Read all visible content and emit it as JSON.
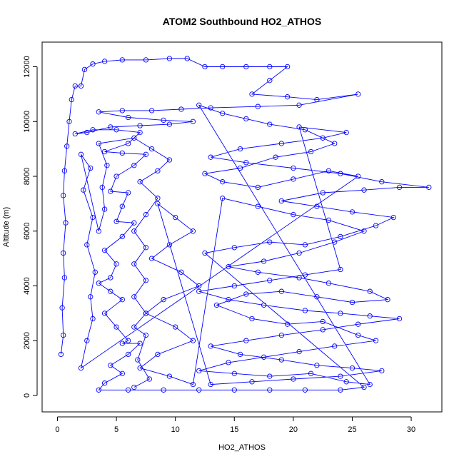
{
  "chart_data": {
    "type": "scatter",
    "title": "ATOM2 Southbound HO2_ATHOS",
    "xlabel": "HO2_ATHOS",
    "ylabel": "Altitude (m)",
    "xlim": [
      -1.3,
      32.6
    ],
    "ylim": [
      -600,
      12900
    ],
    "x_ticks": [
      0,
      5,
      10,
      15,
      20,
      25,
      30
    ],
    "y_ticks": [
      0,
      2000,
      4000,
      6000,
      8000,
      10000,
      12000
    ],
    "grid": false,
    "legend": "none",
    "series_color": "#0000ff",
    "marker": "open-circle",
    "connect_points": true,
    "series": [
      {
        "points": [
          [
            0.3,
            1500
          ],
          [
            0.5,
            2200
          ],
          [
            0.4,
            3200
          ],
          [
            0.6,
            4300
          ],
          [
            0.5,
            5200
          ],
          [
            0.7,
            6300
          ],
          [
            0.5,
            7300
          ],
          [
            0.6,
            8200
          ],
          [
            0.8,
            9100
          ],
          [
            1.0,
            10000
          ],
          [
            1.2,
            10800
          ],
          [
            1.5,
            11300
          ],
          [
            2.0,
            11300
          ],
          [
            2.3,
            11900
          ],
          [
            3.0,
            12100
          ],
          [
            4.0,
            12200
          ],
          [
            5.5,
            12250
          ],
          [
            7.5,
            12250
          ],
          [
            9.5,
            12300
          ],
          [
            11.0,
            12300
          ],
          [
            12.5,
            12000
          ],
          [
            14.0,
            12000
          ],
          [
            16.0,
            12000
          ],
          [
            18.0,
            12000
          ],
          [
            19.5,
            12000
          ],
          [
            18.0,
            11500
          ],
          [
            16.5,
            11000
          ],
          [
            19.5,
            10900
          ],
          [
            22.0,
            10800
          ],
          [
            25.5,
            11000
          ],
          [
            20.5,
            10600
          ],
          [
            17.0,
            10550
          ],
          [
            13.0,
            10500
          ],
          [
            10.5,
            10450
          ],
          [
            8.0,
            10400
          ],
          [
            5.5,
            10400
          ],
          [
            3.5,
            10350
          ],
          [
            6.0,
            10150
          ],
          [
            9.0,
            10050
          ],
          [
            11.5,
            10000
          ],
          [
            9.5,
            9900
          ],
          [
            7.0,
            9850
          ],
          [
            4.5,
            9800
          ],
          [
            2.5,
            9600
          ],
          [
            1.5,
            9550
          ],
          [
            3.0,
            9700
          ],
          [
            5.0,
            9700
          ],
          [
            7.0,
            9600
          ],
          [
            6.0,
            9200
          ],
          [
            4.0,
            8900
          ],
          [
            5.5,
            8850
          ],
          [
            7.5,
            8800
          ],
          [
            6.5,
            8400
          ],
          [
            5.0,
            8000
          ],
          [
            4.5,
            7450
          ],
          [
            6.0,
            7400
          ],
          [
            5.5,
            6900
          ],
          [
            5.0,
            6350
          ],
          [
            6.5,
            6300
          ],
          [
            5.5,
            5800
          ],
          [
            4.0,
            5300
          ],
          [
            5.0,
            4800
          ],
          [
            4.5,
            4300
          ],
          [
            3.5,
            4100
          ],
          [
            4.5,
            3800
          ],
          [
            5.5,
            3500
          ],
          [
            4.0,
            3000
          ],
          [
            5.0,
            2500
          ],
          [
            6.0,
            2000
          ],
          [
            5.5,
            1900
          ],
          [
            7.0,
            1900
          ],
          [
            6.0,
            1500
          ],
          [
            4.5,
            1100
          ],
          [
            5.5,
            800
          ],
          [
            4.0,
            450
          ],
          [
            3.5,
            200
          ],
          [
            6.0,
            200
          ],
          [
            9.0,
            200
          ],
          [
            12.0,
            200
          ],
          [
            15.0,
            200
          ],
          [
            18.0,
            200
          ],
          [
            21.0,
            200
          ],
          [
            24.0,
            200
          ],
          [
            26.0,
            300
          ],
          [
            12.5,
            5200
          ],
          [
            15.0,
            5400
          ],
          [
            18.0,
            5600
          ],
          [
            21.0,
            5500
          ],
          [
            24.0,
            5800
          ],
          [
            27.0,
            6200
          ],
          [
            28.5,
            6500
          ],
          [
            25.0,
            6700
          ],
          [
            22.0,
            6900
          ],
          [
            19.0,
            7100
          ],
          [
            22.5,
            7400
          ],
          [
            26.0,
            7500
          ],
          [
            29.0,
            7600
          ],
          [
            31.5,
            7600
          ],
          [
            27.5,
            7800
          ],
          [
            24.0,
            8100
          ],
          [
            20.0,
            8300
          ],
          [
            16.0,
            8500
          ],
          [
            13.0,
            8700
          ],
          [
            15.5,
            9000
          ],
          [
            19.0,
            9200
          ],
          [
            22.5,
            9400
          ],
          [
            24.5,
            9600
          ],
          [
            20.5,
            9800
          ],
          [
            24.0,
            4600
          ],
          [
            21.0,
            4400
          ],
          [
            18.0,
            4200
          ],
          [
            15.0,
            4000
          ],
          [
            12.0,
            3800
          ],
          [
            14.5,
            3500
          ],
          [
            17.5,
            3300
          ],
          [
            21.0,
            3100
          ],
          [
            24.0,
            3000
          ],
          [
            26.5,
            2900
          ],
          [
            29.0,
            2800
          ],
          [
            25.5,
            2600
          ],
          [
            22.5,
            2400
          ],
          [
            19.0,
            2200
          ],
          [
            16.0,
            2000
          ],
          [
            13.0,
            1800
          ],
          [
            15.5,
            1500
          ],
          [
            19.0,
            1300
          ],
          [
            22.0,
            1100
          ],
          [
            25.0,
            1000
          ],
          [
            27.5,
            900
          ],
          [
            24.0,
            700
          ],
          [
            20.0,
            600
          ],
          [
            16.5,
            500
          ],
          [
            13.0,
            400
          ],
          [
            8.5,
            7000
          ],
          [
            10.0,
            6500
          ],
          [
            11.5,
            6000
          ],
          [
            9.5,
            5500
          ],
          [
            8.0,
            5000
          ],
          [
            10.5,
            4500
          ],
          [
            12.0,
            4000
          ],
          [
            9.0,
            3500
          ],
          [
            7.5,
            3000
          ],
          [
            10.0,
            2500
          ],
          [
            11.5,
            2000
          ],
          [
            8.5,
            1500
          ],
          [
            7.0,
            1000
          ],
          [
            9.5,
            700
          ],
          [
            11.5,
            400
          ],
          [
            14.0,
            7200
          ],
          [
            17.0,
            6900
          ],
          [
            20.0,
            6600
          ],
          [
            23.0,
            6400
          ],
          [
            26.0,
            6000
          ],
          [
            23.5,
            5600
          ],
          [
            20.5,
            5200
          ],
          [
            17.5,
            4900
          ],
          [
            14.5,
            4700
          ],
          [
            17.0,
            4500
          ],
          [
            20.5,
            4300
          ],
          [
            23.0,
            4100
          ],
          [
            26.5,
            3800
          ],
          [
            28.0,
            3500
          ],
          [
            25.0,
            3400
          ],
          [
            22.0,
            3600
          ],
          [
            19.0,
            3800
          ],
          [
            16.0,
            3700
          ],
          [
            13.5,
            3300
          ],
          [
            16.5,
            2800
          ],
          [
            19.5,
            2600
          ],
          [
            22.5,
            2700
          ],
          [
            25.5,
            2200
          ],
          [
            27.0,
            2000
          ],
          [
            23.5,
            1800
          ],
          [
            20.5,
            1600
          ],
          [
            17.5,
            1400
          ],
          [
            14.5,
            1200
          ],
          [
            12.0,
            900
          ],
          [
            15.0,
            800
          ],
          [
            18.0,
            700
          ],
          [
            21.5,
            800
          ],
          [
            24.5,
            500
          ],
          [
            26.5,
            400
          ],
          [
            12.0,
            10600
          ],
          [
            14.0,
            10300
          ],
          [
            16.0,
            10100
          ],
          [
            18.0,
            9900
          ],
          [
            21.0,
            9700
          ],
          [
            23.5,
            9200
          ],
          [
            21.5,
            8900
          ],
          [
            18.5,
            8700
          ],
          [
            15.5,
            8300
          ],
          [
            12.5,
            8100
          ],
          [
            14.0,
            7800
          ],
          [
            17.0,
            7600
          ],
          [
            20.0,
            7900
          ],
          [
            23.0,
            8200
          ],
          [
            25.5,
            8000
          ],
          [
            2.0,
            1000
          ],
          [
            2.5,
            2000
          ],
          [
            3.0,
            2800
          ],
          [
            2.8,
            3600
          ],
          [
            3.2,
            4500
          ],
          [
            2.5,
            5500
          ],
          [
            3.0,
            6500
          ],
          [
            2.2,
            7500
          ],
          [
            2.8,
            8300
          ],
          [
            2.0,
            8800
          ],
          [
            3.5,
            6000
          ],
          [
            4.0,
            6800
          ],
          [
            3.8,
            7600
          ],
          [
            4.2,
            8400
          ],
          [
            3.5,
            9200
          ],
          [
            6.5,
            9400
          ],
          [
            8.0,
            9000
          ],
          [
            9.5,
            8600
          ],
          [
            8.5,
            8200
          ],
          [
            7.0,
            7800
          ],
          [
            8.5,
            7200
          ],
          [
            7.5,
            6600
          ],
          [
            6.5,
            6000
          ],
          [
            7.5,
            5400
          ],
          [
            6.5,
            4800
          ],
          [
            7.5,
            4200
          ],
          [
            6.5,
            3600
          ],
          [
            7.5,
            3000
          ],
          [
            6.5,
            2500
          ],
          [
            7.5,
            2200
          ],
          [
            6.8,
            1300
          ],
          [
            7.8,
            600
          ],
          [
            6.5,
            300
          ]
        ]
      }
    ]
  }
}
